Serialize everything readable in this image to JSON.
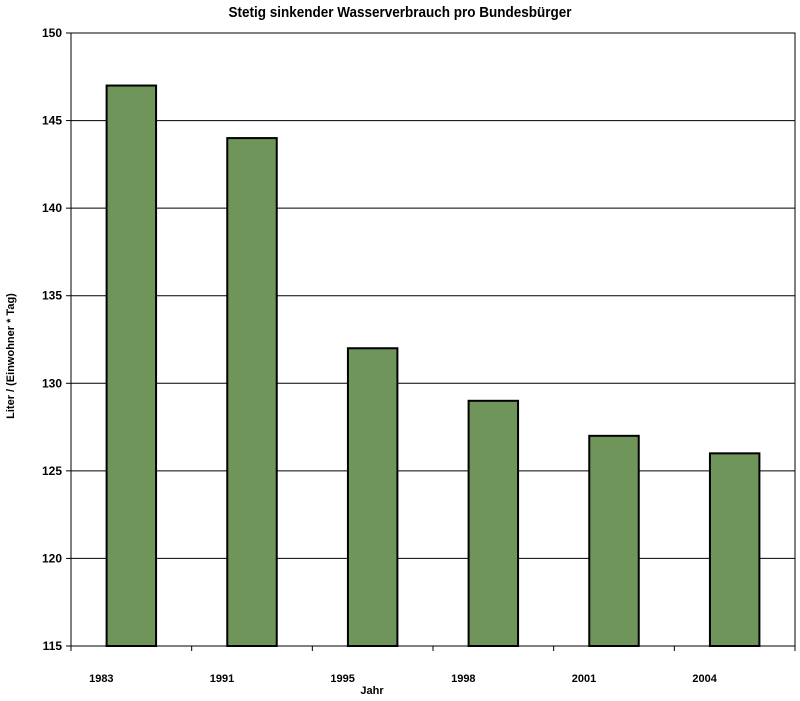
{
  "chart_data": {
    "type": "bar",
    "title": "Stetig sinkender Wasserverbrauch pro Bundesbürger",
    "xlabel": "Jahr",
    "ylabel": "Liter / (Einwohner * Tag)",
    "categories": [
      "1983",
      "1991",
      "1995",
      "1998",
      "2001",
      "2004"
    ],
    "values": [
      147,
      144,
      132,
      129,
      127,
      126
    ],
    "ylim": [
      115,
      150
    ],
    "yticks": [
      115,
      120,
      125,
      130,
      135,
      140,
      145,
      150
    ],
    "grid": true,
    "legend": "none",
    "colors": {
      "bar_fill": "#6f955a",
      "bar_stroke": "#000000",
      "grid": "#000000",
      "background": "#ffffff"
    }
  }
}
